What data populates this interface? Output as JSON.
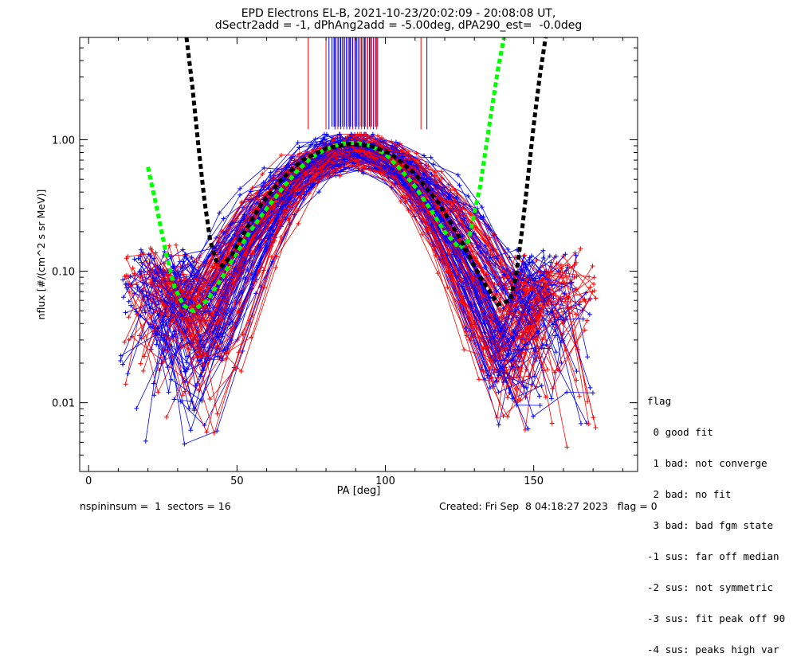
{
  "title_line1": "EPD Electrons EL-B, 2021-10-23/20:02:09 - 20:08:08 UT,",
  "title_line2": "dSectr2add = -1, dPhAng2add = -5.00deg, dPA290_est=  -0.0deg",
  "footer_left": "nspininsum =  1  sectors = 16",
  "footer_right": "Created: Fri Sep  8 04:18:27 2023   flag = 0",
  "legend": {
    "title": "flag",
    "items": [
      " 0 good fit",
      " 1 bad: not converge",
      " 2 bad: no fit",
      " 3 bad: bad fgm state",
      "-1 sus: far off median",
      "-2 sus: not symmetric",
      "-3 sus: fit peak off 90",
      "-4 sus: peaks high var"
    ]
  },
  "colors": {
    "red": "#ff0000",
    "blue": "#0000ff",
    "green": "#00ff00",
    "black": "#000000"
  },
  "chart_data": {
    "type": "line",
    "xlabel": "PA [deg]",
    "ylabel": "nflux [#/(cm^2 s sr MeV)]",
    "xlim": [
      -3,
      185
    ],
    "ylim": [
      0.003,
      6
    ],
    "yscale": "log",
    "xticks": [
      0,
      50,
      100,
      150
    ],
    "xtick_labels": [
      "0",
      "50",
      "100",
      "150"
    ],
    "yticks": [
      0.01,
      0.1,
      1.0
    ],
    "ytick_labels": [
      "0.01",
      "0.10",
      "1.00"
    ],
    "series": [
      {
        "color": "green",
        "style": "dashed-thick",
        "x": [
          20,
          23,
          26,
          29,
          32,
          35,
          40,
          45,
          50,
          55,
          60,
          65,
          70,
          75,
          80,
          85,
          90,
          95,
          100,
          105,
          110,
          115,
          120,
          125,
          128,
          130,
          132,
          134,
          136,
          138,
          140
        ],
        "y": [
          0.62,
          0.3,
          0.14,
          0.075,
          0.055,
          0.05,
          0.06,
          0.09,
          0.14,
          0.21,
          0.3,
          0.42,
          0.57,
          0.73,
          0.85,
          0.93,
          0.95,
          0.9,
          0.78,
          0.6,
          0.44,
          0.3,
          0.2,
          0.15,
          0.17,
          0.28,
          0.45,
          0.9,
          1.8,
          3.5,
          6.0
        ]
      },
      {
        "color": "black",
        "style": "dashed-thick",
        "x": [
          33,
          35,
          37,
          39,
          41,
          43,
          45,
          48,
          52,
          58,
          65,
          72,
          80,
          88,
          95,
          102,
          110,
          118,
          125,
          132,
          138,
          142,
          144,
          146,
          148,
          150,
          152,
          154
        ],
        "y": [
          6.0,
          2.5,
          0.9,
          0.35,
          0.17,
          0.12,
          0.11,
          0.13,
          0.19,
          0.32,
          0.5,
          0.7,
          0.86,
          0.93,
          0.9,
          0.78,
          0.55,
          0.33,
          0.18,
          0.09,
          0.056,
          0.06,
          0.09,
          0.2,
          0.5,
          1.3,
          3.0,
          6.0
        ]
      }
    ],
    "traces": {
      "description_colors": [
        "red",
        "blue"
      ],
      "peak_pa": [
        85,
        95
      ],
      "peak_flux": [
        0.7,
        1.0
      ]
    },
    "spikes": {
      "red_x": [
        74,
        80,
        84,
        86,
        88,
        89,
        91,
        92,
        95,
        97,
        112
      ],
      "blue_x": [
        81,
        83,
        85,
        87,
        88,
        90,
        91,
        93,
        94,
        96,
        114
      ],
      "base_flux": 1.2
    }
  }
}
